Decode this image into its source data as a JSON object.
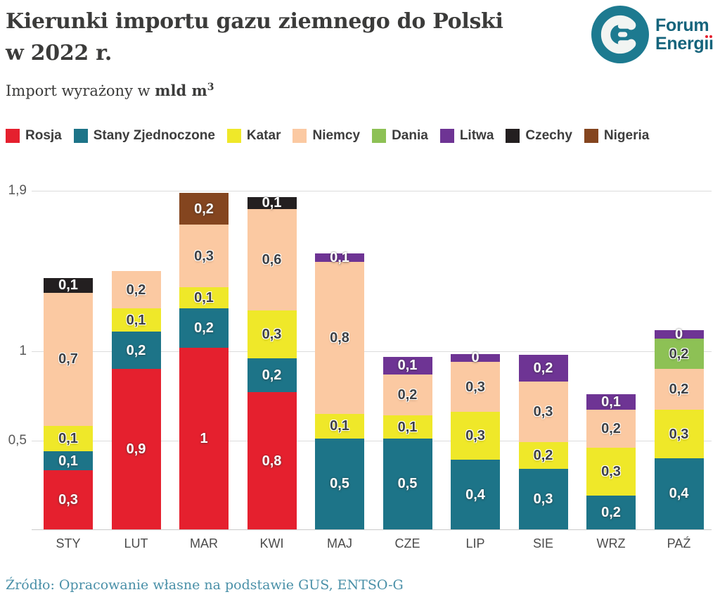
{
  "header": {
    "title_line1": "Kierunki importu gazu ziemnego do Polski",
    "title_line2": "w 2022 r.",
    "subtitle_prefix": "Import wyrażony w ",
    "subtitle_unit": "mld m",
    "subtitle_exponent": "3"
  },
  "logo": {
    "line1": "Forum",
    "line2_base": "Energ",
    "i_char": "ı",
    "circle_color": "#1d7a90",
    "text_color": "#15647c",
    "dot_color": "#e5202e"
  },
  "legend": [
    {
      "label": "Rosja",
      "color": "#e5202e"
    },
    {
      "label": "Stany Zjednoczone",
      "color": "#1d7488"
    },
    {
      "label": "Katar",
      "color": "#efe829"
    },
    {
      "label": "Niemcy",
      "color": "#fbc9a2"
    },
    {
      "label": "Dania",
      "color": "#8dc155"
    },
    {
      "label": "Litwa",
      "color": "#6e3494"
    },
    {
      "label": "Czechy",
      "color": "#231f20"
    },
    {
      "label": "Nigeria",
      "color": "#84451f"
    }
  ],
  "chart_data": {
    "type": "bar",
    "stacked": true,
    "title": "Kierunki importu gazu ziemnego do Polski w 2022 r.",
    "ylabel": "mld m3",
    "ylim": [
      0,
      1.9
    ],
    "grid": true,
    "y_axis": {
      "ticks": [
        {
          "label": "0,5",
          "v": 0.5
        },
        {
          "label": "1",
          "v": 1
        },
        {
          "label": "1,9",
          "v": 1.9
        }
      ]
    },
    "series_colors": {
      "Rosja": "#e5202e",
      "Stany Zjednoczone": "#1d7488",
      "Katar": "#efe829",
      "Niemcy": "#fbc9a2",
      "Dania": "#8dc155",
      "Litwa": "#6e3494",
      "Czechy": "#231f20",
      "Nigeria": "#84451f"
    },
    "dark_text_series": [
      "Katar",
      "Niemcy",
      "Dania"
    ],
    "categories": [
      "STY",
      "LUT",
      "MAR",
      "KWI",
      "MAJ",
      "CZE",
      "LIP",
      "SIE",
      "WRZ",
      "PAŹ"
    ],
    "bars": [
      {
        "month": "STY",
        "segments": [
          {
            "series": "Rosja",
            "label": "0,3",
            "value": 0.3,
            "h": 0.33
          },
          {
            "series": "Stany Zjednoczone",
            "label": "0,1",
            "value": 0.1,
            "h": 0.11
          },
          {
            "series": "Katar",
            "label": "0,1",
            "value": 0.1,
            "h": 0.14
          },
          {
            "series": "Niemcy",
            "label": "0,7",
            "value": 0.7,
            "h": 0.75
          },
          {
            "series": "Czechy",
            "label": "0,1",
            "value": 0.1,
            "h": 0.08
          }
        ]
      },
      {
        "month": "LUT",
        "segments": [
          {
            "series": "Rosja",
            "label": "0,9",
            "value": 0.9,
            "h": 0.9
          },
          {
            "series": "Stany Zjednoczone",
            "label": "0,2",
            "value": 0.2,
            "h": 0.21
          },
          {
            "series": "Katar",
            "label": "0,1",
            "value": 0.1,
            "h": 0.13
          },
          {
            "series": "Niemcy",
            "label": "0,2",
            "value": 0.2,
            "h": 0.21
          }
        ]
      },
      {
        "month": "MAR",
        "segments": [
          {
            "series": "Rosja",
            "label": "1",
            "value": 1.0,
            "h": 1.02
          },
          {
            "series": "Stany Zjednoczone",
            "label": "0,2",
            "value": 0.2,
            "h": 0.22
          },
          {
            "series": "Katar",
            "label": "0,1",
            "value": 0.1,
            "h": 0.12
          },
          {
            "series": "Niemcy",
            "label": "0,3",
            "value": 0.3,
            "h": 0.35
          },
          {
            "series": "Nigeria",
            "label": "0,2",
            "value": 0.2,
            "h": 0.18
          }
        ]
      },
      {
        "month": "KWI",
        "segments": [
          {
            "series": "Rosja",
            "label": "0,8",
            "value": 0.8,
            "h": 0.77
          },
          {
            "series": "Stany Zjednoczone",
            "label": "0,2",
            "value": 0.2,
            "h": 0.19
          },
          {
            "series": "Katar",
            "label": "0,3",
            "value": 0.3,
            "h": 0.27
          },
          {
            "series": "Niemcy",
            "label": "0,6",
            "value": 0.6,
            "h": 0.57
          },
          {
            "series": "Czechy",
            "label": "0,1",
            "value": 0.1,
            "h": 0.065
          }
        ]
      },
      {
        "month": "MAJ",
        "segments": [
          {
            "series": "Stany Zjednoczone",
            "label": "0,5",
            "value": 0.5,
            "h": 0.51
          },
          {
            "series": "Katar",
            "label": "0,1",
            "value": 0.1,
            "h": 0.14
          },
          {
            "series": "Niemcy",
            "label": "0,8",
            "value": 0.8,
            "h": 0.85
          },
          {
            "series": "Litwa",
            "label": "0,1",
            "value": 0.1,
            "h": 0.05
          }
        ]
      },
      {
        "month": "CZE",
        "segments": [
          {
            "series": "Stany Zjednoczone",
            "label": "0,5",
            "value": 0.5,
            "h": 0.51
          },
          {
            "series": "Katar",
            "label": "0,1",
            "value": 0.1,
            "h": 0.13
          },
          {
            "series": "Niemcy",
            "label": "0,2",
            "value": 0.2,
            "h": 0.23
          },
          {
            "series": "Litwa",
            "label": "0,1",
            "value": 0.1,
            "h": 0.1
          }
        ]
      },
      {
        "month": "LIP",
        "segments": [
          {
            "series": "Stany Zjednoczone",
            "label": "0,4",
            "value": 0.4,
            "h": 0.39
          },
          {
            "series": "Katar",
            "label": "0,3",
            "value": 0.3,
            "h": 0.27
          },
          {
            "series": "Niemcy",
            "label": "0,3",
            "value": 0.3,
            "h": 0.28
          },
          {
            "series": "Litwa",
            "label": "0",
            "value": 0.0,
            "h": 0.045
          }
        ]
      },
      {
        "month": "SIE",
        "segments": [
          {
            "series": "Stany Zjednoczone",
            "label": "0,3",
            "value": 0.3,
            "h": 0.34
          },
          {
            "series": "Katar",
            "label": "0,2",
            "value": 0.2,
            "h": 0.15
          },
          {
            "series": "Niemcy",
            "label": "0,3",
            "value": 0.3,
            "h": 0.34
          },
          {
            "series": "Litwa",
            "label": "0,2",
            "value": 0.2,
            "h": 0.15
          }
        ]
      },
      {
        "month": "WRZ",
        "segments": [
          {
            "series": "Stany Zjednoczone",
            "label": "0,2",
            "value": 0.2,
            "h": 0.19
          },
          {
            "series": "Katar",
            "label": "0,3",
            "value": 0.3,
            "h": 0.27
          },
          {
            "series": "Niemcy",
            "label": "0,2",
            "value": 0.2,
            "h": 0.21
          },
          {
            "series": "Litwa",
            "label": "0,1",
            "value": 0.1,
            "h": 0.09
          }
        ]
      },
      {
        "month": "PAŹ",
        "segments": [
          {
            "series": "Stany Zjednoczone",
            "label": "0,4",
            "value": 0.4,
            "h": 0.4
          },
          {
            "series": "Katar",
            "label": "0,3",
            "value": 0.3,
            "h": 0.27
          },
          {
            "series": "Niemcy",
            "label": "0,2",
            "value": 0.2,
            "h": 0.23
          },
          {
            "series": "Dania",
            "label": "0,2",
            "value": 0.2,
            "h": 0.17
          },
          {
            "series": "Litwa",
            "label": "0",
            "value": 0.0,
            "h": 0.05
          }
        ]
      }
    ]
  },
  "source": "Źródło: Opracowanie własne na podstawie GUS, ENTSO-G"
}
